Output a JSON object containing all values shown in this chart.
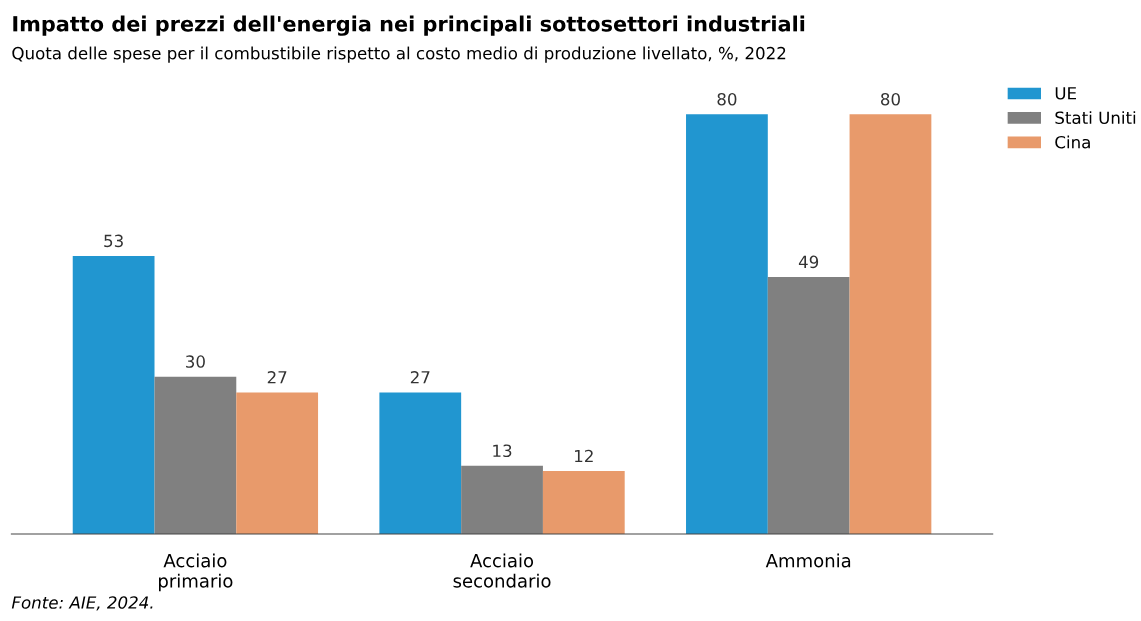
{
  "chart_data": {
    "type": "bar",
    "title": "Impatto dei prezzi dell'energia nei principali sottosettori industriali",
    "subtitle": "Quota delle spese per il combustibile rispetto al costo medio di produzione livellato, %, 2022",
    "categories": [
      "Acciaio\nprimario",
      "Acciaio\nsecondario",
      "Ammonia"
    ],
    "series": [
      {
        "name": "UE",
        "color": "#2196d0",
        "values": [
          53,
          27,
          80
        ]
      },
      {
        "name": "Stati Uniti",
        "color": "#808080",
        "values": [
          30,
          13,
          49
        ]
      },
      {
        "name": "Cina",
        "color": "#e89a6b",
        "values": [
          27,
          12,
          80
        ]
      }
    ],
    "data_labels": true,
    "grid": false,
    "legend": "top right",
    "annotations": [
      "Fonte: AIE, 2024."
    ]
  }
}
